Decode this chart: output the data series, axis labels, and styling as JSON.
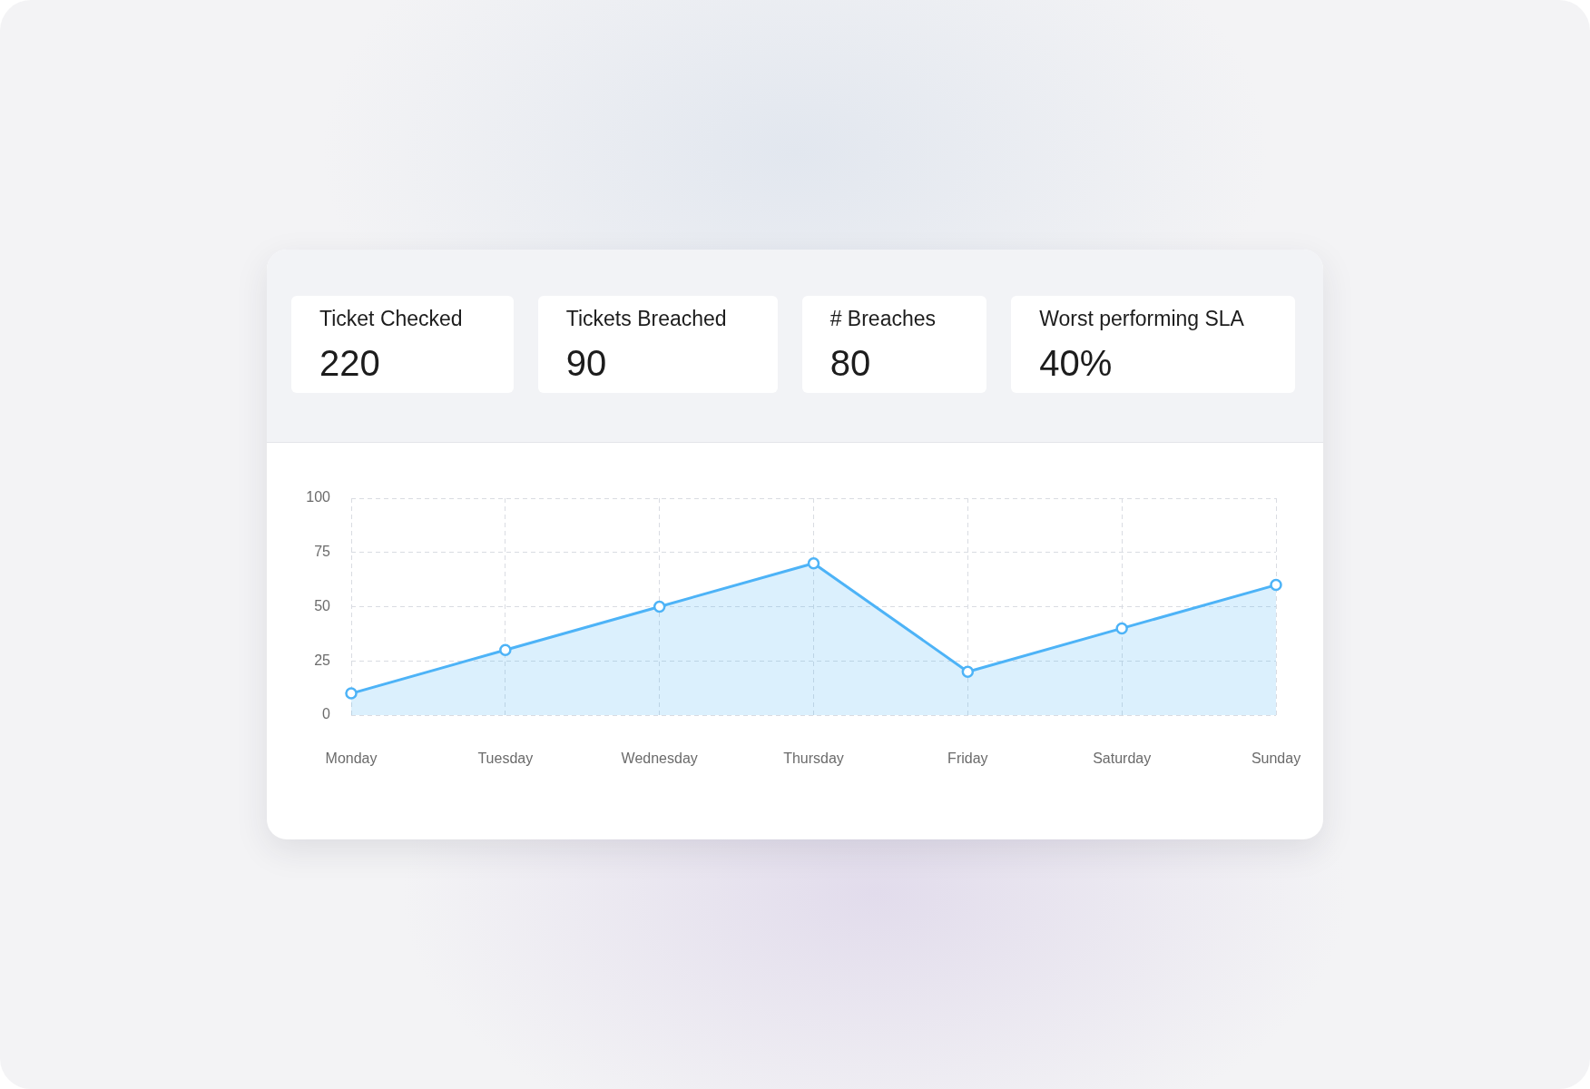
{
  "chart_data": [
    {
      "type": "other",
      "annotations": [
        "Ticket Checked",
        "220",
        "Tickets Breached",
        "90",
        "# Breaches",
        "80",
        "Worst performing SLA",
        "40%"
      ]
    },
    {
      "type": "area",
      "categories": [
        "Monday",
        "Tuesday",
        "Wednesday",
        "Thursday",
        "Friday",
        "Saturday",
        "Sunday"
      ],
      "values": [
        10,
        30,
        50,
        70,
        20,
        40,
        60
      ],
      "color": "#4db3f7",
      "ylim": [
        0,
        100
      ],
      "yticks": [
        0,
        25,
        50,
        75,
        100
      ],
      "grid": true,
      "marker": "circle",
      "line_style": "solid"
    }
  ]
}
